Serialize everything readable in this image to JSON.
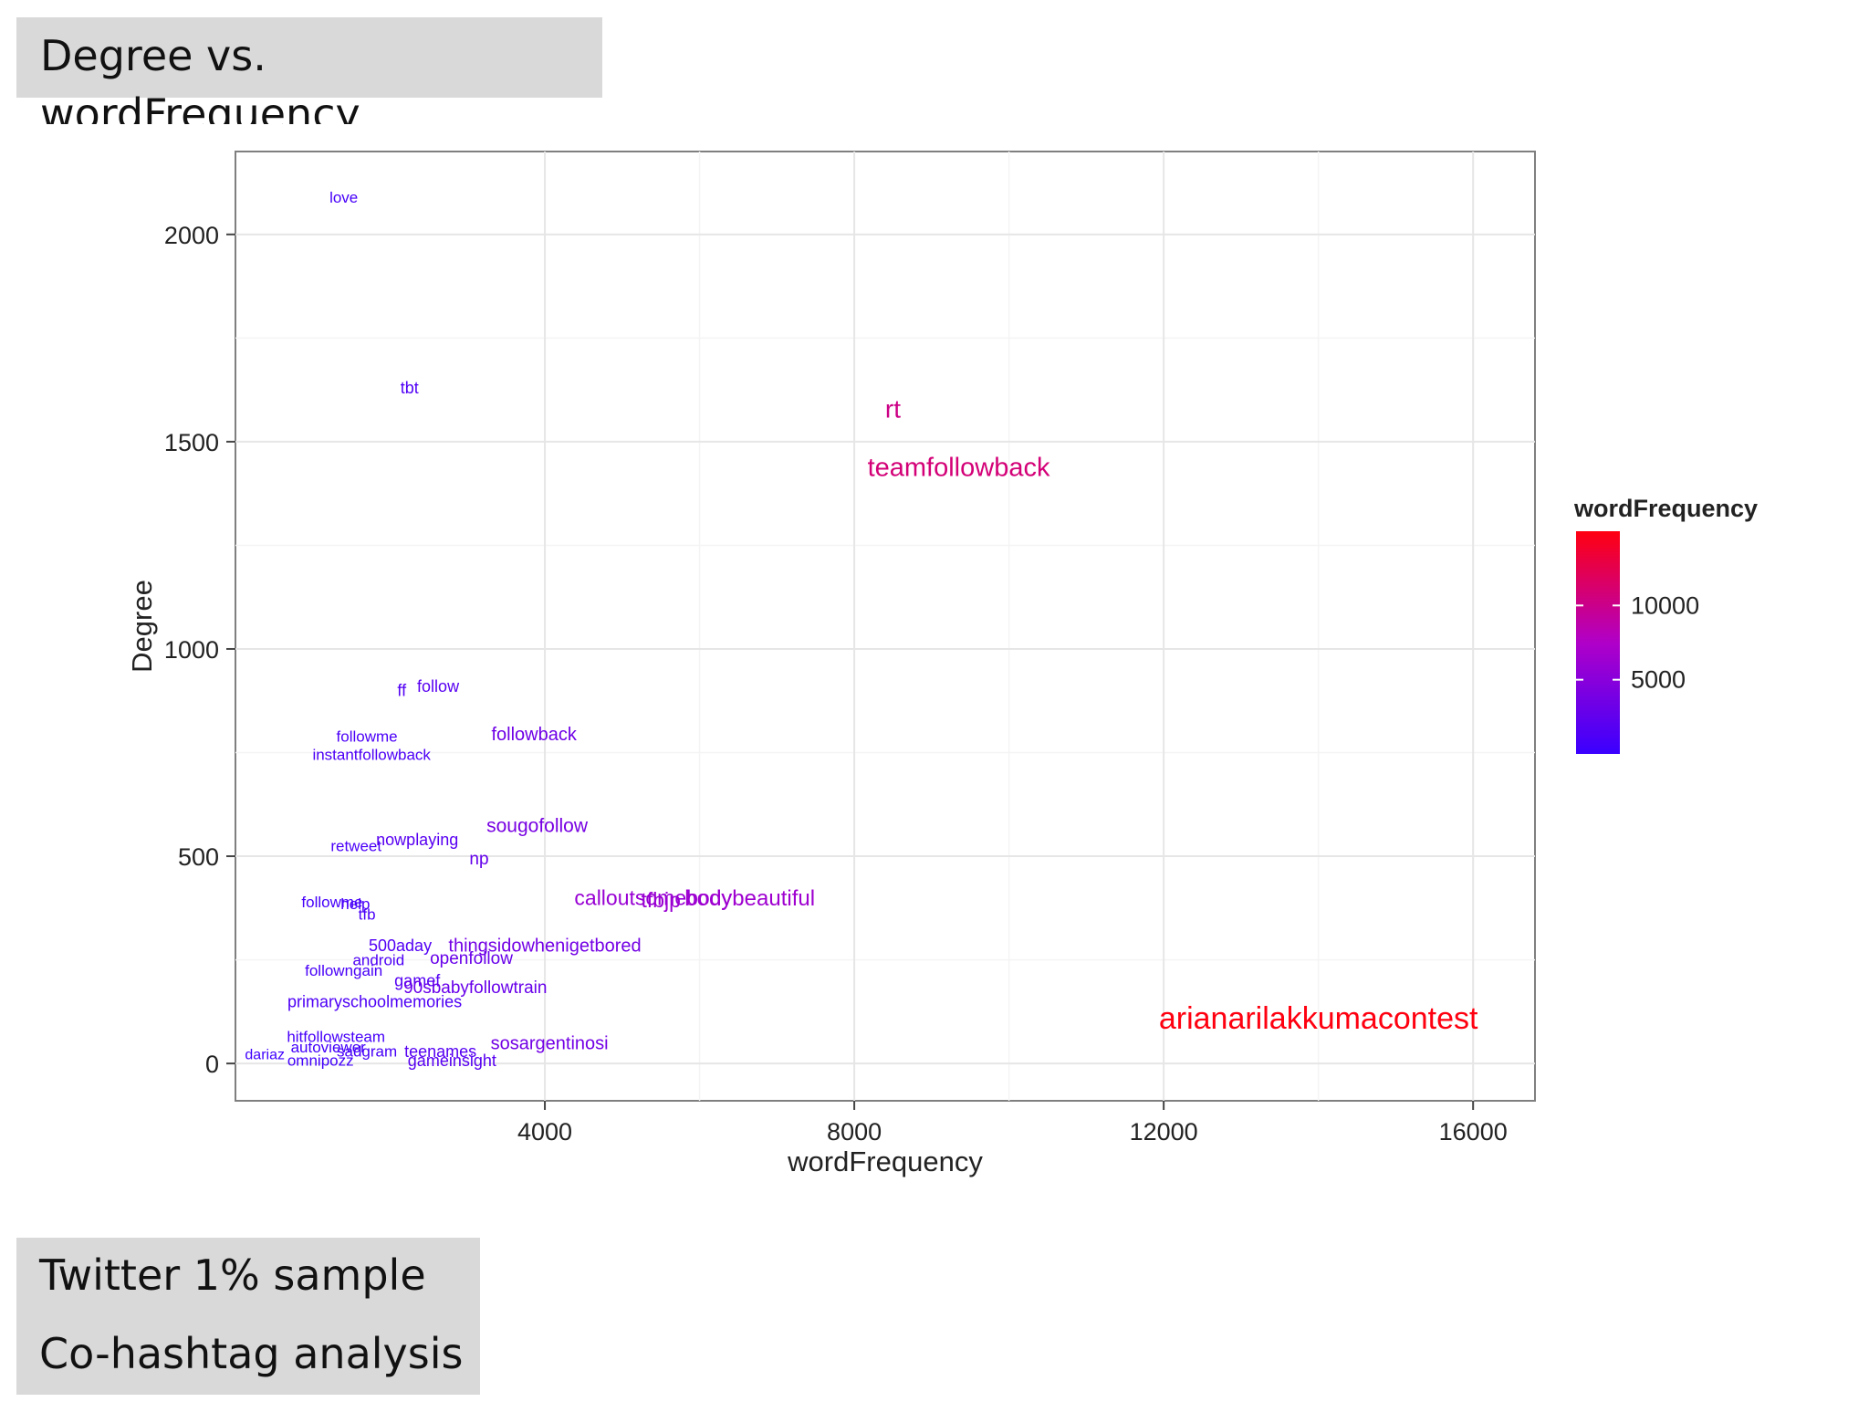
{
  "slide": {
    "title": "Degree vs. wordFrequency",
    "notes": [
      "Twitter 1% sample",
      "Co-hashtag analysis"
    ]
  },
  "chart_data": {
    "type": "scatter",
    "xlabel": "wordFrequency",
    "ylabel": "Degree",
    "xlim": [
      0,
      16800
    ],
    "ylim": [
      -90,
      2200
    ],
    "xticks": [
      4000,
      8000,
      12000,
      16000
    ],
    "yticks": [
      0,
      500,
      1000,
      1500,
      2000
    ],
    "grid": true,
    "legend": {
      "title": "wordFrequency",
      "position": "right",
      "ticks": [
        5000,
        10000
      ],
      "range": [
        0,
        15000
      ],
      "low_color": "#3a00ff",
      "high_color": "#ff0000"
    },
    "points": [
      {
        "label": "love",
        "x": 1400,
        "y": 2090,
        "color_value": 800
      },
      {
        "label": "tbt",
        "x": 2250,
        "y": 1630,
        "color_value": 1400
      },
      {
        "label": "rt",
        "x": 8500,
        "y": 1580,
        "color_value": 10200
      },
      {
        "label": "teamfollowback",
        "x": 9350,
        "y": 1440,
        "color_value": 10800
      },
      {
        "label": "ff",
        "x": 2150,
        "y": 900,
        "color_value": 1500
      },
      {
        "label": "follow",
        "x": 2620,
        "y": 910,
        "color_value": 1900
      },
      {
        "label": "followback",
        "x": 3860,
        "y": 795,
        "color_value": 3400
      },
      {
        "label": "followme",
        "x": 1700,
        "y": 790,
        "color_value": 1100
      },
      {
        "label": "instantfollowback",
        "x": 1760,
        "y": 745,
        "color_value": 1200
      },
      {
        "label": "sougofollow",
        "x": 3900,
        "y": 575,
        "color_value": 3900
      },
      {
        "label": "retweet",
        "x": 1560,
        "y": 525,
        "color_value": 1000
      },
      {
        "label": "nowplaying",
        "x": 2350,
        "y": 540,
        "color_value": 1900
      },
      {
        "label": "np",
        "x": 3150,
        "y": 495,
        "color_value": 2700
      },
      {
        "label": "calloutsomebody",
        "x": 5400,
        "y": 400,
        "color_value": 6000
      },
      {
        "label": "tfbjp",
        "x": 5500,
        "y": 395,
        "color_value": 6100
      },
      {
        "label": "bodybeautiful",
        "x": 6650,
        "y": 400,
        "color_value": 6400
      },
      {
        "label": "followme",
        "x": 1250,
        "y": 390,
        "color_value": 700
      },
      {
        "label": "help",
        "x": 1550,
        "y": 385,
        "color_value": 900
      },
      {
        "label": "tfb",
        "x": 1700,
        "y": 360,
        "color_value": 1000
      },
      {
        "label": "500aday",
        "x": 2130,
        "y": 285,
        "color_value": 1500
      },
      {
        "label": "thingsidowhenigetbored",
        "x": 4000,
        "y": 285,
        "color_value": 3600
      },
      {
        "label": "android",
        "x": 1850,
        "y": 250,
        "color_value": 1200
      },
      {
        "label": "openfollow",
        "x": 3050,
        "y": 255,
        "color_value": 2900
      },
      {
        "label": "followngain",
        "x": 1400,
        "y": 225,
        "color_value": 900
      },
      {
        "label": "gamef",
        "x": 2350,
        "y": 200,
        "color_value": 1700
      },
      {
        "label": "90sbabyfollowtrain",
        "x": 3100,
        "y": 185,
        "color_value": 2900
      },
      {
        "label": "primaryschoolmemories",
        "x": 1800,
        "y": 150,
        "color_value": 1300
      },
      {
        "label": "hitfollowsteam",
        "x": 1300,
        "y": 65,
        "color_value": 800
      },
      {
        "label": "sosargentinosi",
        "x": 4060,
        "y": 50,
        "color_value": 3600
      },
      {
        "label": "teenames",
        "x": 2650,
        "y": 30,
        "color_value": 1800
      },
      {
        "label": "dariaz",
        "x": 380,
        "y": 22,
        "color_value": 300
      },
      {
        "label": "autoviewer",
        "x": 1200,
        "y": 40,
        "color_value": 600
      },
      {
        "label": "sadgram",
        "x": 1700,
        "y": 30,
        "color_value": 900
      },
      {
        "label": "omnipozz",
        "x": 1100,
        "y": 8,
        "color_value": 500
      },
      {
        "label": "gameinsight",
        "x": 2800,
        "y": 8,
        "color_value": 1900
      },
      {
        "label": "arianarilakkumacontest",
        "x": 14000,
        "y": 110,
        "color_value": 15000
      }
    ]
  }
}
